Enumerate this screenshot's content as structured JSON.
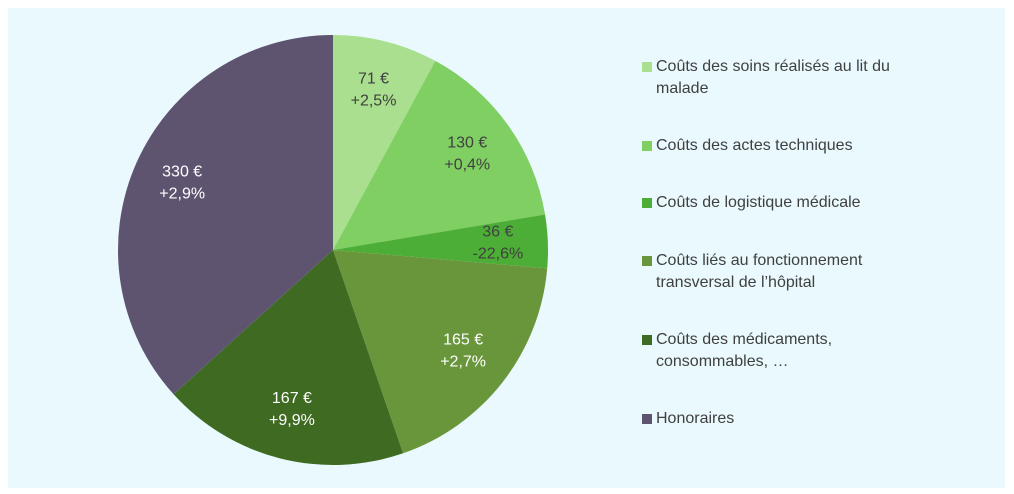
{
  "chart_data": {
    "type": "pie",
    "categories": [
      "Coûts des soins réalisés au lit du\nmalade",
      "Coûts des actes techniques",
      "Coûts de logistique médicale",
      "Coûts liés au fonctionnement\ntransversal de l’hôpital",
      "Coûts des médicaments,\nconsommables, …",
      "Honoraires"
    ],
    "values": [
      71,
      130,
      36,
      165,
      167,
      330
    ],
    "value_labels": [
      "71 €",
      "130 €",
      "36 €",
      "165 €",
      "167 €",
      "330 €"
    ],
    "change_labels": [
      "+2,5%",
      "+0,4%",
      "-22,6%",
      "+2,7%",
      "+9,9%",
      "+2,9%"
    ],
    "colors": [
      "#a9df8e",
      "#7fcf62",
      "#4cae36",
      "#6a963b",
      "#3f6a22",
      "#5e5470"
    ],
    "label_colors": [
      "#404040",
      "#404040",
      "#404040",
      "#ffffff",
      "#ffffff",
      "#ffffff"
    ],
    "legend": "right"
  }
}
